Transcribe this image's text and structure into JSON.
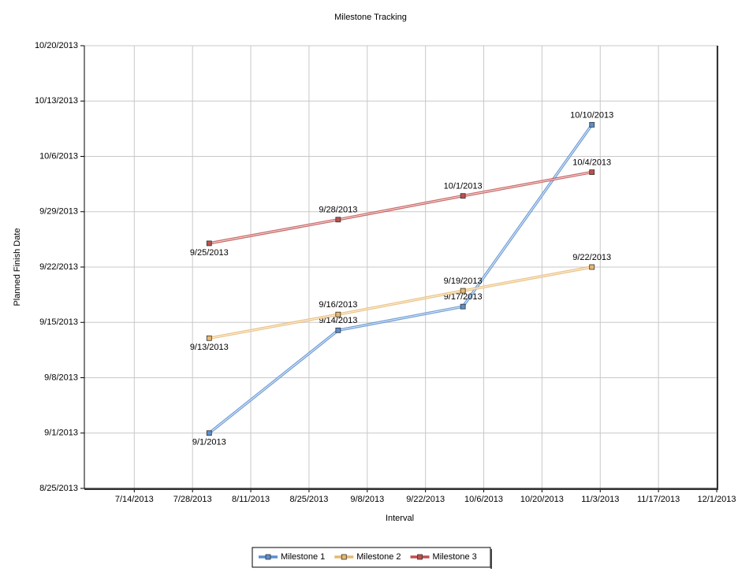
{
  "chart_data": {
    "type": "line",
    "title": "Milestone Tracking",
    "x_label": "Interval",
    "y_label": "Planned Finish Date",
    "x": [
      "8/1/2013",
      "9/1/2013",
      "10/1/2013",
      "11/1/2013"
    ],
    "series": [
      {
        "name": "Milestone 1",
        "color": "#5b8fd0",
        "values": [
          "9/1/2013",
          "9/14/2013",
          "9/17/2013",
          "10/10/2013"
        ]
      },
      {
        "name": "Milestone 2",
        "color": "#e8b870",
        "values": [
          "9/13/2013",
          "9/16/2013",
          "9/19/2013",
          "9/22/2013"
        ]
      },
      {
        "name": "Milestone 3",
        "color": "#c0504d",
        "values": [
          "9/25/2013",
          "9/28/2013",
          "10/1/2013",
          "10/4/2013"
        ]
      }
    ],
    "xlim": [
      "7/2/2013",
      "12/1/2013"
    ],
    "xticks": [
      "7/14/2013",
      "7/28/2013",
      "8/11/2013",
      "8/25/2013",
      "9/8/2013",
      "9/22/2013",
      "10/6/2013",
      "10/20/2013",
      "11/3/2013",
      "11/17/2013",
      "12/1/2013"
    ],
    "ylim": [
      "8/25/2013",
      "10/20/2013"
    ],
    "yticks": [
      "8/25/2013",
      "9/1/2013",
      "9/8/2013",
      "9/15/2013",
      "9/22/2013",
      "9/29/2013",
      "10/6/2013",
      "10/13/2013",
      "10/20/2013"
    ],
    "grid": true,
    "legend": "bottom"
  }
}
